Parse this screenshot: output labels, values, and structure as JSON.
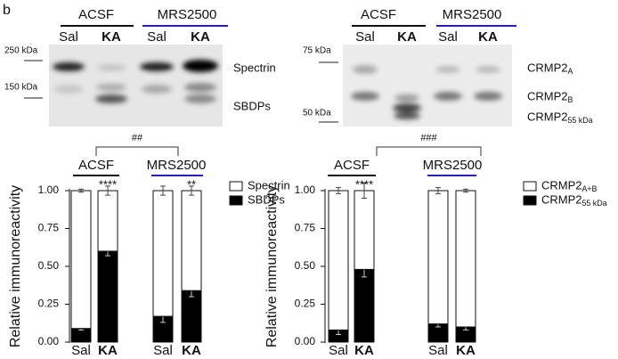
{
  "panel_label": "b",
  "blots": [
    {
      "groups": [
        "ACSF",
        "MRS2500"
      ],
      "lanes": [
        "Sal",
        "KA",
        "Sal",
        "KA"
      ],
      "markers": [
        "250 kDa",
        "150 kDa"
      ],
      "bands": [
        {
          "name": "Spectrin"
        },
        {
          "name": "SBDPs"
        }
      ]
    },
    {
      "groups": [
        "ACSF",
        "MRS2500"
      ],
      "lanes": [
        "Sal",
        "KA",
        "Sal",
        "KA"
      ],
      "markers": [
        "75 kDa",
        "50 kDa"
      ],
      "bands": [
        {
          "name": "CRMP2",
          "subscript": "A"
        },
        {
          "name": "CRMP2",
          "subscript": "B"
        },
        {
          "name": "CRMP2",
          "subscript": "55 kDa"
        }
      ]
    }
  ],
  "chart_data": [
    {
      "type": "stacked_bar",
      "ylabel": "Relative immunoreactivity",
      "groups": [
        "ACSF",
        "MRS2500"
      ],
      "categories": [
        "Sal",
        "KA",
        "Sal",
        "KA"
      ],
      "series": [
        {
          "name": "SBDPs",
          "color": "#000000",
          "values": [
            0.09,
            0.6,
            0.17,
            0.34
          ],
          "errors": [
            0.01,
            0.03,
            0.04,
            0.04
          ]
        },
        {
          "name": "Spectrin",
          "color": "#ffffff",
          "values": [
            0.91,
            0.4,
            0.83,
            0.66
          ],
          "errors": [
            0.01,
            0.03,
            0.03,
            0.03
          ]
        }
      ],
      "significance": [
        null,
        "****",
        null,
        "**"
      ],
      "group_comparison": "##",
      "ylim": [
        0,
        1
      ],
      "yticks": [
        {
          "value": 0,
          "label": "0.00"
        },
        {
          "value": 0.25,
          "label": "0.25"
        },
        {
          "value": 0.5,
          "label": "0.50"
        },
        {
          "value": 0.75,
          "label": "0.75"
        },
        {
          "value": 1,
          "label": "1.00"
        }
      ]
    },
    {
      "type": "stacked_bar",
      "ylabel": "Relative immunoreactivity",
      "groups": [
        "ACSF",
        "MRS2500"
      ],
      "categories": [
        "Sal",
        "KA",
        "Sal",
        "KA"
      ],
      "series": [
        {
          "name": "CRMP2",
          "subscript": "55 kDa",
          "color": "#000000",
          "values": [
            0.08,
            0.48,
            0.12,
            0.1
          ],
          "errors": [
            0.03,
            0.05,
            0.02,
            0.02
          ]
        },
        {
          "name": "CRMP2",
          "subscript": "A+B",
          "color": "#ffffff",
          "values": [
            0.92,
            0.52,
            0.88,
            0.9
          ],
          "errors": [
            0.02,
            0.05,
            0.02,
            0.01
          ]
        }
      ],
      "significance": [
        null,
        "****",
        null,
        null
      ],
      "group_comparison": "###",
      "ylim": [
        0,
        1
      ],
      "yticks": [
        {
          "value": 0,
          "label": "0.00"
        },
        {
          "value": 0.25,
          "label": "0.25"
        },
        {
          "value": 0.5,
          "label": "0.50"
        },
        {
          "value": 0.75,
          "label": "0.75"
        },
        {
          "value": 1,
          "label": "1.00"
        }
      ]
    }
  ]
}
